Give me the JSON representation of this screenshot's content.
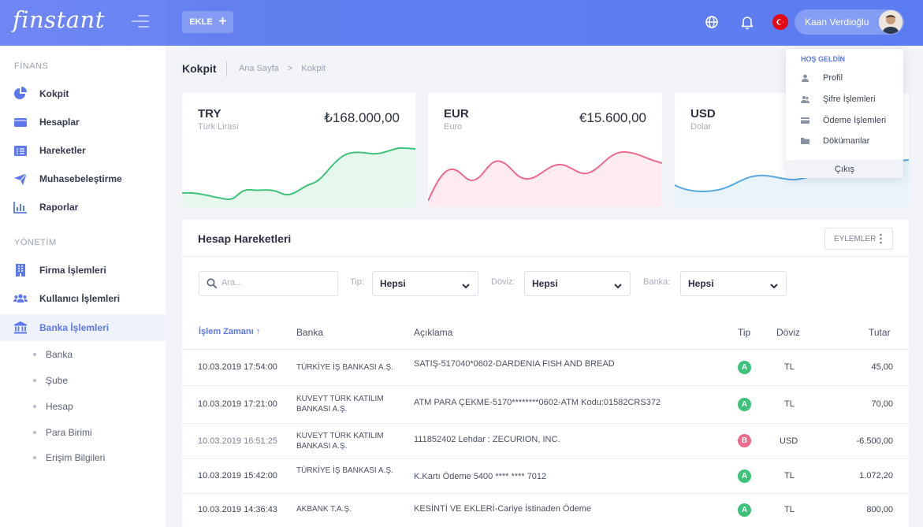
{
  "app": {
    "logo": "finstant",
    "add_label": "EKLE"
  },
  "user": {
    "name": "Kaan Verdioğlu"
  },
  "sidebar": {
    "section_finance": "FİNANS",
    "section_admin": "YÖNETİM",
    "items": [
      {
        "label": "Kokpit"
      },
      {
        "label": "Hesaplar"
      },
      {
        "label": "Hareketler"
      },
      {
        "label": "Muhasebeleştirme"
      },
      {
        "label": "Raporlar"
      },
      {
        "label": "Firma İşlemleri"
      },
      {
        "label": "Kullanıcı İşlemleri"
      },
      {
        "label": "Banka İşlemleri"
      }
    ],
    "sub_items": [
      {
        "label": "Banka"
      },
      {
        "label": "Şube"
      },
      {
        "label": "Hesap"
      },
      {
        "label": "Para Birimi"
      },
      {
        "label": "Erişim Bilgileri"
      }
    ]
  },
  "header": {
    "title": "Kokpit",
    "breadcrumb": [
      "Ana Sayfa",
      "Kokpit"
    ],
    "breadcrumb_sep": ">"
  },
  "cards": [
    {
      "code": "TRY",
      "name": "Türk Lirası",
      "amount": "₺168.000,00",
      "color": "#3ec27a",
      "fill": "#e6f7ee"
    },
    {
      "code": "EUR",
      "name": "Euro",
      "amount": "€15.600,00",
      "color": "#ec6a8c",
      "fill": "#fdebf0"
    },
    {
      "code": "USD",
      "name": "Dolar",
      "amount": "",
      "color": "#58a8e0",
      "fill": "#e8f3fb"
    }
  ],
  "dropdown": {
    "heading": "HOŞ GELDİN",
    "items": [
      {
        "label": "Profil",
        "icon": "user-icon"
      },
      {
        "label": "Şifre İşlemleri",
        "icon": "users-icon"
      },
      {
        "label": "Ödeme İşlemleri",
        "icon": "card-icon"
      },
      {
        "label": "Dökümanlar",
        "icon": "folder-icon"
      }
    ],
    "logout": "Çıkış"
  },
  "panel": {
    "title": "Hesap Hareketleri",
    "actions_label": "EYLEMLER",
    "search_placeholder": "Ara...",
    "filters": [
      {
        "label": "Tip:",
        "value": "Hepsi"
      },
      {
        "label": "Döviz:",
        "value": "Hepsi"
      },
      {
        "label": "Banka:",
        "value": "Hepsi"
      }
    ],
    "columns": [
      "İşlem Zamanı",
      "Banka",
      "Açıklama",
      "Tip",
      "Döviz",
      "Tutar"
    ],
    "sort_indicator": "↑",
    "rows": [
      {
        "time": "10.03.2019  17:54:00",
        "bank": "TÜRKİYE İŞ BANKASI A.Ş.",
        "desc": "SATIŞ-517040*0602-DARDENIA FISH AND BREAD",
        "type": "A",
        "currency": "TL",
        "amount": "45,00"
      },
      {
        "time": "10.03.2019  17:21:00",
        "bank": "KUVEYT TÜRK KATILIM BANKASI A.Ş.",
        "desc": "ATM PARA ÇEKME-5170********0602-ATM Kodu:01582CRS372",
        "type": "A",
        "currency": "TL",
        "amount": "70,00"
      },
      {
        "time": "10.03.2019  16:51:25",
        "bank": "KUVEYT TÜRK KATILIM BANKASI A.Ş.",
        "desc": "111852402 Lehdar : ZECURION, INC.",
        "type": "B",
        "currency": "USD",
        "amount": "-6.500,00"
      },
      {
        "time": "10.03.2019  15:42:00",
        "bank": "TÜRKİYE İŞ BANKASI A.Ş.",
        "desc": "K.Kartı Ödeme 5400 **** **** 7012",
        "type": "A",
        "currency": "TL",
        "amount": "1.072,20"
      },
      {
        "time": "10.03.2019 14:36:43",
        "bank": "AKBANK T.A.Ş.",
        "desc": "KESİNTİ VE EKLERİ-Cariye İstinaden Ödeme",
        "type": "A",
        "currency": "TL",
        "amount": "800,00"
      }
    ]
  },
  "colors": {
    "accent": "#5b78ec",
    "type_a": "#3ec27a",
    "type_b": "#ec6a8c"
  }
}
